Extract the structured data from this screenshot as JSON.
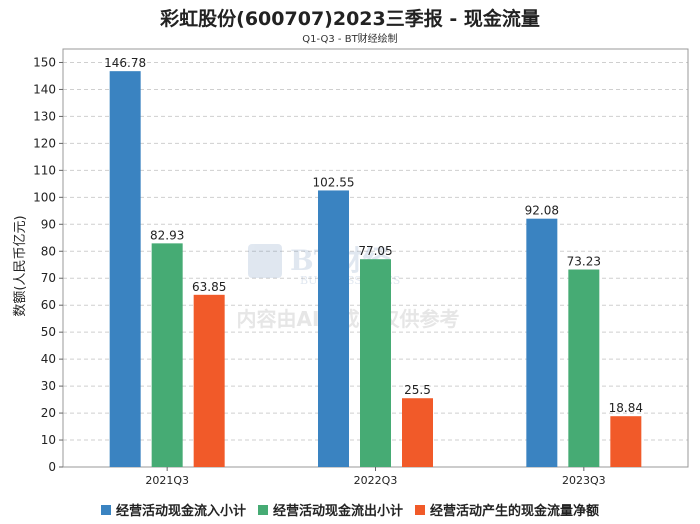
{
  "title": "彩虹股份(600707)2023三季报 - 现金流量",
  "subtitle": "Q1-Q3 - BT财经绘制",
  "watermark": {
    "logo_text": "BT财经",
    "logo_sub": "BUSINESSTIMES",
    "notice": "内容由AI生成，仅供参考"
  },
  "chart_data": {
    "type": "bar",
    "ylabel": "数额(人民币亿元)",
    "xlabel": "",
    "ylim": [
      0,
      155
    ],
    "yticks": [
      0,
      10,
      20,
      30,
      40,
      50,
      60,
      70,
      80,
      90,
      100,
      110,
      120,
      130,
      140,
      150
    ],
    "grid": true,
    "legend_position": "bottom",
    "categories": [
      "2021Q3",
      "2022Q3",
      "2023Q3"
    ],
    "series": [
      {
        "name": "经营活动现金流入小计",
        "color": "#3a83c1",
        "values": [
          146.78,
          102.55,
          92.08
        ],
        "labels": [
          "146.78",
          "102.55",
          "92.08"
        ]
      },
      {
        "name": "经营活动现金流出小计",
        "color": "#46ab74",
        "values": [
          82.93,
          77.05,
          73.23
        ],
        "labels": [
          "82.93",
          "77.05",
          "73.23"
        ]
      },
      {
        "name": "经营活动产生的现金流量净额",
        "color": "#f15a29",
        "values": [
          63.85,
          25.5,
          18.84
        ],
        "labels": [
          "63.85",
          "25.5",
          "18.84"
        ]
      }
    ]
  }
}
